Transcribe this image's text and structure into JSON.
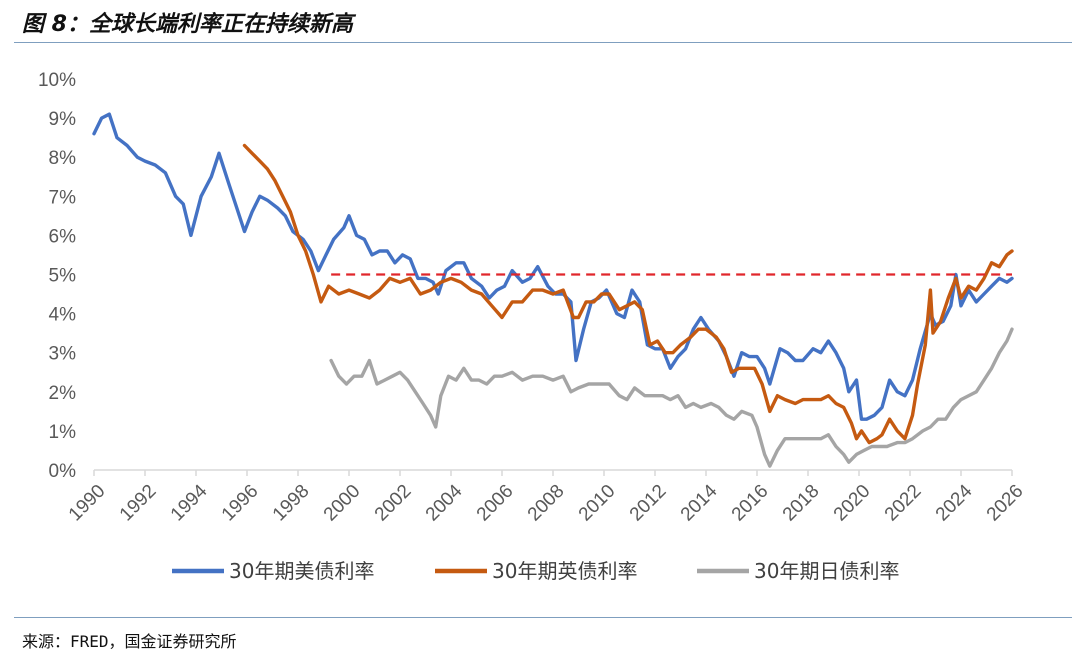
{
  "header": {
    "title": "图 8：全球长端利率正在持续新高"
  },
  "footer": {
    "source": "来源：FRED，国金证券研究所"
  },
  "chart_data": {
    "type": "line",
    "title": "图 8：全球长端利率正在持续新高",
    "xlabel": "",
    "ylabel": "",
    "xlim": [
      1990,
      2026
    ],
    "ylim": [
      0,
      10
    ],
    "x_ticks": [
      "1990",
      "1992",
      "1994",
      "1996",
      "1998",
      "2000",
      "2002",
      "2004",
      "2006",
      "2008",
      "2010",
      "2012",
      "2014",
      "2016",
      "2018",
      "2020",
      "2022",
      "2024",
      "2026"
    ],
    "y_ticks": [
      "0%",
      "1%",
      "2%",
      "3%",
      "4%",
      "5%",
      "6%",
      "7%",
      "8%",
      "9%",
      "10%"
    ],
    "grid": false,
    "legend_position": "bottom",
    "reference_line": {
      "y": 5.0,
      "x_start": 1999.3,
      "x_end": 2026,
      "color": "#e0262b",
      "style": "dashed"
    },
    "series": [
      {
        "name": "30年期美债利率",
        "color": "#4472c4",
        "points": [
          [
            1990.0,
            8.6
          ],
          [
            1990.3,
            9.0
          ],
          [
            1990.6,
            9.1
          ],
          [
            1990.9,
            8.5
          ],
          [
            1991.3,
            8.3
          ],
          [
            1991.7,
            8.0
          ],
          [
            1992.0,
            7.9
          ],
          [
            1992.4,
            7.8
          ],
          [
            1992.8,
            7.6
          ],
          [
            1993.2,
            7.0
          ],
          [
            1993.5,
            6.8
          ],
          [
            1993.8,
            6.0
          ],
          [
            1994.2,
            7.0
          ],
          [
            1994.6,
            7.5
          ],
          [
            1994.9,
            8.1
          ],
          [
            1995.3,
            7.3
          ],
          [
            1995.6,
            6.7
          ],
          [
            1995.9,
            6.1
          ],
          [
            1996.2,
            6.6
          ],
          [
            1996.5,
            7.0
          ],
          [
            1996.8,
            6.9
          ],
          [
            1997.2,
            6.7
          ],
          [
            1997.5,
            6.5
          ],
          [
            1997.8,
            6.1
          ],
          [
            1998.2,
            5.9
          ],
          [
            1998.5,
            5.6
          ],
          [
            1998.8,
            5.1
          ],
          [
            1999.1,
            5.5
          ],
          [
            1999.4,
            5.9
          ],
          [
            1999.8,
            6.2
          ],
          [
            2000.0,
            6.5
          ],
          [
            2000.3,
            6.0
          ],
          [
            2000.6,
            5.9
          ],
          [
            2000.9,
            5.5
          ],
          [
            2001.2,
            5.6
          ],
          [
            2001.5,
            5.6
          ],
          [
            2001.8,
            5.3
          ],
          [
            2002.1,
            5.5
          ],
          [
            2002.4,
            5.4
          ],
          [
            2002.7,
            4.9
          ],
          [
            2003.0,
            4.9
          ],
          [
            2003.3,
            4.8
          ],
          [
            2003.5,
            4.5
          ],
          [
            2003.8,
            5.1
          ],
          [
            2004.2,
            5.3
          ],
          [
            2004.5,
            5.3
          ],
          [
            2004.8,
            4.9
          ],
          [
            2005.2,
            4.7
          ],
          [
            2005.5,
            4.4
          ],
          [
            2005.8,
            4.6
          ],
          [
            2006.1,
            4.7
          ],
          [
            2006.4,
            5.1
          ],
          [
            2006.8,
            4.8
          ],
          [
            2007.1,
            4.9
          ],
          [
            2007.4,
            5.2
          ],
          [
            2007.8,
            4.7
          ],
          [
            2008.1,
            4.5
          ],
          [
            2008.4,
            4.5
          ],
          [
            2008.7,
            4.3
          ],
          [
            2008.9,
            2.8
          ],
          [
            2009.2,
            3.6
          ],
          [
            2009.5,
            4.3
          ],
          [
            2009.8,
            4.4
          ],
          [
            2010.1,
            4.6
          ],
          [
            2010.5,
            4.0
          ],
          [
            2010.8,
            3.9
          ],
          [
            2011.1,
            4.6
          ],
          [
            2011.4,
            4.3
          ],
          [
            2011.7,
            3.2
          ],
          [
            2012.0,
            3.1
          ],
          [
            2012.3,
            3.1
          ],
          [
            2012.6,
            2.6
          ],
          [
            2012.9,
            2.9
          ],
          [
            2013.2,
            3.1
          ],
          [
            2013.5,
            3.6
          ],
          [
            2013.8,
            3.9
          ],
          [
            2014.1,
            3.6
          ],
          [
            2014.5,
            3.3
          ],
          [
            2014.8,
            2.9
          ],
          [
            2015.1,
            2.4
          ],
          [
            2015.4,
            3.0
          ],
          [
            2015.7,
            2.9
          ],
          [
            2016.0,
            2.9
          ],
          [
            2016.3,
            2.6
          ],
          [
            2016.5,
            2.2
          ],
          [
            2016.9,
            3.1
          ],
          [
            2017.2,
            3.0
          ],
          [
            2017.5,
            2.8
          ],
          [
            2017.8,
            2.8
          ],
          [
            2018.2,
            3.1
          ],
          [
            2018.5,
            3.0
          ],
          [
            2018.8,
            3.3
          ],
          [
            2019.1,
            3.0
          ],
          [
            2019.4,
            2.6
          ],
          [
            2019.6,
            2.0
          ],
          [
            2019.9,
            2.3
          ],
          [
            2020.1,
            1.3
          ],
          [
            2020.3,
            1.3
          ],
          [
            2020.6,
            1.4
          ],
          [
            2020.9,
            1.6
          ],
          [
            2021.2,
            2.3
          ],
          [
            2021.5,
            2.0
          ],
          [
            2021.8,
            1.9
          ],
          [
            2022.1,
            2.3
          ],
          [
            2022.4,
            3.1
          ],
          [
            2022.8,
            4.0
          ],
          [
            2023.0,
            3.7
          ],
          [
            2023.3,
            3.8
          ],
          [
            2023.6,
            4.2
          ],
          [
            2023.8,
            5.0
          ],
          [
            2024.0,
            4.2
          ],
          [
            2024.3,
            4.6
          ],
          [
            2024.6,
            4.3
          ],
          [
            2024.9,
            4.5
          ],
          [
            2025.2,
            4.7
          ],
          [
            2025.5,
            4.9
          ],
          [
            2025.8,
            4.8
          ],
          [
            2026.0,
            4.9
          ]
        ]
      },
      {
        "name": "30年期英债利率",
        "color": "#c55a11",
        "points": [
          [
            1995.9,
            8.3
          ],
          [
            1996.2,
            8.1
          ],
          [
            1996.5,
            7.9
          ],
          [
            1996.8,
            7.7
          ],
          [
            1997.1,
            7.4
          ],
          [
            1997.4,
            7.0
          ],
          [
            1997.7,
            6.6
          ],
          [
            1998.0,
            6.0
          ],
          [
            1998.3,
            5.6
          ],
          [
            1998.6,
            5.0
          ],
          [
            1998.9,
            4.3
          ],
          [
            1999.2,
            4.7
          ],
          [
            1999.6,
            4.5
          ],
          [
            2000.0,
            4.6
          ],
          [
            2000.4,
            4.5
          ],
          [
            2000.8,
            4.4
          ],
          [
            2001.2,
            4.6
          ],
          [
            2001.6,
            4.9
          ],
          [
            2002.0,
            4.8
          ],
          [
            2002.4,
            4.9
          ],
          [
            2002.8,
            4.5
          ],
          [
            2003.2,
            4.6
          ],
          [
            2003.6,
            4.8
          ],
          [
            2004.0,
            4.9
          ],
          [
            2004.4,
            4.8
          ],
          [
            2004.8,
            4.6
          ],
          [
            2005.2,
            4.5
          ],
          [
            2005.6,
            4.2
          ],
          [
            2006.0,
            3.9
          ],
          [
            2006.4,
            4.3
          ],
          [
            2006.8,
            4.3
          ],
          [
            2007.2,
            4.6
          ],
          [
            2007.6,
            4.6
          ],
          [
            2008.0,
            4.5
          ],
          [
            2008.4,
            4.6
          ],
          [
            2008.8,
            3.9
          ],
          [
            2009.0,
            3.9
          ],
          [
            2009.3,
            4.3
          ],
          [
            2009.6,
            4.3
          ],
          [
            2009.9,
            4.5
          ],
          [
            2010.2,
            4.5
          ],
          [
            2010.6,
            4.1
          ],
          [
            2010.9,
            4.2
          ],
          [
            2011.2,
            4.3
          ],
          [
            2011.5,
            4.1
          ],
          [
            2011.8,
            3.2
          ],
          [
            2012.1,
            3.3
          ],
          [
            2012.4,
            3.0
          ],
          [
            2012.7,
            3.0
          ],
          [
            2013.0,
            3.2
          ],
          [
            2013.4,
            3.4
          ],
          [
            2013.7,
            3.6
          ],
          [
            2014.0,
            3.6
          ],
          [
            2014.4,
            3.4
          ],
          [
            2014.7,
            3.1
          ],
          [
            2015.0,
            2.5
          ],
          [
            2015.3,
            2.6
          ],
          [
            2015.6,
            2.6
          ],
          [
            2015.9,
            2.6
          ],
          [
            2016.2,
            2.2
          ],
          [
            2016.5,
            1.5
          ],
          [
            2016.8,
            1.9
          ],
          [
            2017.1,
            1.8
          ],
          [
            2017.5,
            1.7
          ],
          [
            2017.8,
            1.8
          ],
          [
            2018.2,
            1.8
          ],
          [
            2018.5,
            1.8
          ],
          [
            2018.8,
            1.9
          ],
          [
            2019.1,
            1.7
          ],
          [
            2019.4,
            1.6
          ],
          [
            2019.7,
            1.2
          ],
          [
            2019.9,
            0.8
          ],
          [
            2020.1,
            1.0
          ],
          [
            2020.4,
            0.7
          ],
          [
            2020.7,
            0.8
          ],
          [
            2020.9,
            0.9
          ],
          [
            2021.2,
            1.3
          ],
          [
            2021.5,
            1.0
          ],
          [
            2021.8,
            0.8
          ],
          [
            2022.1,
            1.4
          ],
          [
            2022.3,
            2.2
          ],
          [
            2022.6,
            3.2
          ],
          [
            2022.8,
            4.6
          ],
          [
            2022.9,
            3.5
          ],
          [
            2023.2,
            3.8
          ],
          [
            2023.5,
            4.4
          ],
          [
            2023.8,
            4.9
          ],
          [
            2024.0,
            4.4
          ],
          [
            2024.3,
            4.7
          ],
          [
            2024.6,
            4.6
          ],
          [
            2024.9,
            4.9
          ],
          [
            2025.2,
            5.3
          ],
          [
            2025.5,
            5.2
          ],
          [
            2025.8,
            5.5
          ],
          [
            2026.0,
            5.6
          ]
        ]
      },
      {
        "name": "30年期日债利率",
        "color": "#a5a5a5",
        "points": [
          [
            1999.3,
            2.8
          ],
          [
            1999.6,
            2.4
          ],
          [
            1999.9,
            2.2
          ],
          [
            2000.2,
            2.4
          ],
          [
            2000.5,
            2.4
          ],
          [
            2000.8,
            2.8
          ],
          [
            2001.1,
            2.2
          ],
          [
            2001.4,
            2.3
          ],
          [
            2001.7,
            2.4
          ],
          [
            2002.0,
            2.5
          ],
          [
            2002.3,
            2.3
          ],
          [
            2002.6,
            2.0
          ],
          [
            2002.9,
            1.7
          ],
          [
            2003.2,
            1.4
          ],
          [
            2003.4,
            1.1
          ],
          [
            2003.6,
            1.9
          ],
          [
            2003.9,
            2.4
          ],
          [
            2004.2,
            2.3
          ],
          [
            2004.5,
            2.6
          ],
          [
            2004.8,
            2.3
          ],
          [
            2005.1,
            2.3
          ],
          [
            2005.4,
            2.2
          ],
          [
            2005.7,
            2.4
          ],
          [
            2006.0,
            2.4
          ],
          [
            2006.4,
            2.5
          ],
          [
            2006.8,
            2.3
          ],
          [
            2007.2,
            2.4
          ],
          [
            2007.6,
            2.4
          ],
          [
            2008.0,
            2.3
          ],
          [
            2008.4,
            2.4
          ],
          [
            2008.7,
            2.0
          ],
          [
            2009.0,
            2.1
          ],
          [
            2009.4,
            2.2
          ],
          [
            2009.8,
            2.2
          ],
          [
            2010.2,
            2.2
          ],
          [
            2010.6,
            1.9
          ],
          [
            2010.9,
            1.8
          ],
          [
            2011.2,
            2.1
          ],
          [
            2011.6,
            1.9
          ],
          [
            2011.9,
            1.9
          ],
          [
            2012.3,
            1.9
          ],
          [
            2012.6,
            1.8
          ],
          [
            2012.9,
            1.9
          ],
          [
            2013.2,
            1.6
          ],
          [
            2013.5,
            1.7
          ],
          [
            2013.8,
            1.6
          ],
          [
            2014.2,
            1.7
          ],
          [
            2014.5,
            1.6
          ],
          [
            2014.8,
            1.4
          ],
          [
            2015.1,
            1.3
          ],
          [
            2015.4,
            1.5
          ],
          [
            2015.8,
            1.4
          ],
          [
            2016.0,
            1.1
          ],
          [
            2016.3,
            0.4
          ],
          [
            2016.5,
            0.1
          ],
          [
            2016.8,
            0.5
          ],
          [
            2017.1,
            0.8
          ],
          [
            2017.5,
            0.8
          ],
          [
            2017.8,
            0.8
          ],
          [
            2018.2,
            0.8
          ],
          [
            2018.5,
            0.8
          ],
          [
            2018.8,
            0.9
          ],
          [
            2019.1,
            0.6
          ],
          [
            2019.4,
            0.4
          ],
          [
            2019.6,
            0.2
          ],
          [
            2019.9,
            0.4
          ],
          [
            2020.2,
            0.5
          ],
          [
            2020.5,
            0.6
          ],
          [
            2020.8,
            0.6
          ],
          [
            2021.1,
            0.6
          ],
          [
            2021.5,
            0.7
          ],
          [
            2021.8,
            0.7
          ],
          [
            2022.1,
            0.8
          ],
          [
            2022.5,
            1.0
          ],
          [
            2022.8,
            1.1
          ],
          [
            2023.1,
            1.3
          ],
          [
            2023.4,
            1.3
          ],
          [
            2023.7,
            1.6
          ],
          [
            2024.0,
            1.8
          ],
          [
            2024.3,
            1.9
          ],
          [
            2024.6,
            2.0
          ],
          [
            2024.9,
            2.3
          ],
          [
            2025.2,
            2.6
          ],
          [
            2025.5,
            3.0
          ],
          [
            2025.8,
            3.3
          ],
          [
            2026.0,
            3.6
          ]
        ]
      }
    ]
  }
}
